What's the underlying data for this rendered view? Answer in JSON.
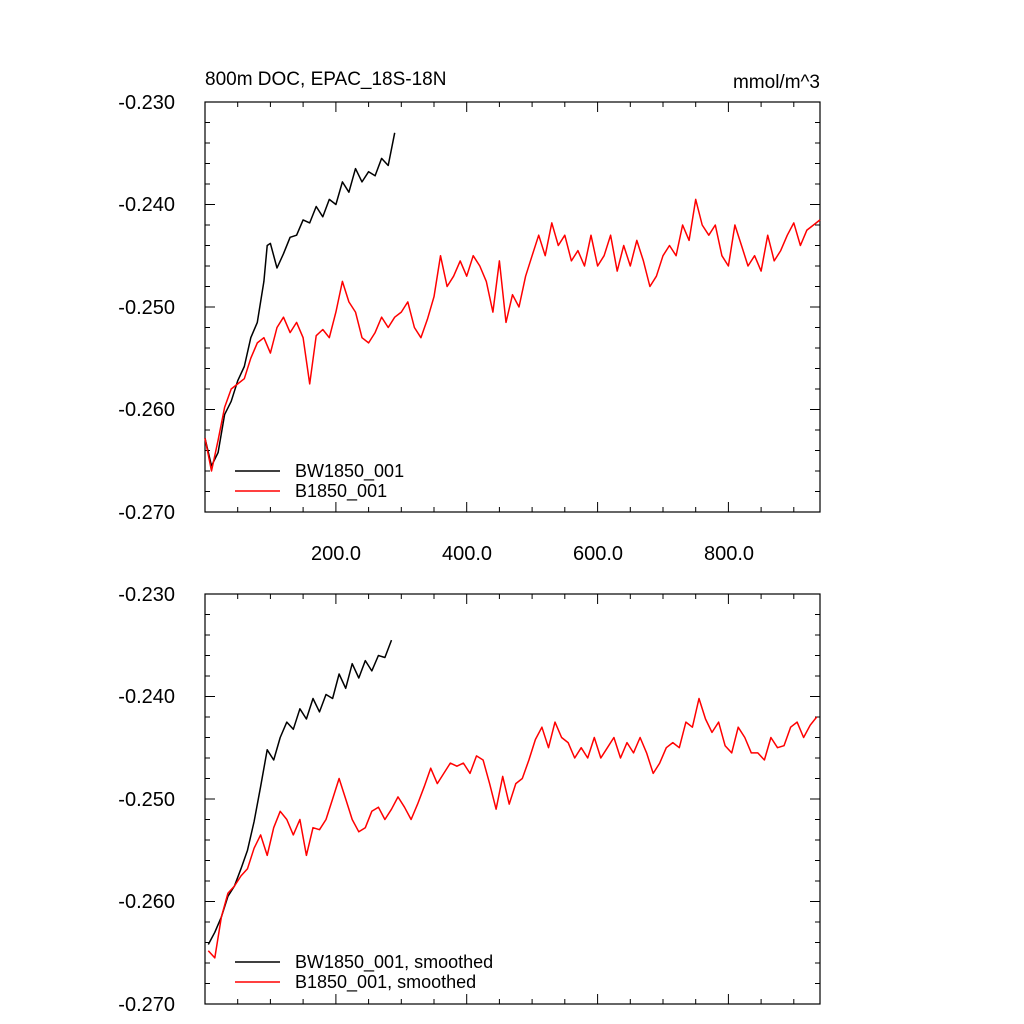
{
  "chart_data": [
    {
      "type": "line",
      "title": "800m DOC, EPAC_18S-18N",
      "units": "mmol/m^3",
      "xlim": [
        0,
        940
      ],
      "ylim": [
        -0.27,
        -0.23
      ],
      "yticks": [
        "-0.230",
        "-0.240",
        "-0.250",
        "-0.260",
        "-0.270"
      ],
      "xticks": [
        "200.0",
        "400.0",
        "600.0",
        "800.0"
      ],
      "legend_position": "bottom-left",
      "series": [
        {
          "name": "BW1850_001",
          "color": "#000000",
          "x": [
            0,
            10,
            20,
            30,
            40,
            50,
            60,
            70,
            80,
            90,
            95,
            100,
            110,
            120,
            130,
            140,
            150,
            160,
            170,
            180,
            190,
            200,
            210,
            220,
            230,
            240,
            250,
            260,
            270,
            280,
            290
          ],
          "y": [
            -0.2628,
            -0.2655,
            -0.2642,
            -0.2605,
            -0.2592,
            -0.2572,
            -0.2558,
            -0.253,
            -0.2515,
            -0.2475,
            -0.244,
            -0.2438,
            -0.2462,
            -0.2448,
            -0.2432,
            -0.243,
            -0.2415,
            -0.2418,
            -0.2402,
            -0.2412,
            -0.2395,
            -0.24,
            -0.2378,
            -0.2388,
            -0.2365,
            -0.2378,
            -0.2368,
            -0.2372,
            -0.2355,
            -0.2362,
            -0.233
          ]
        },
        {
          "name": "B1850_001",
          "color": "#ff0000",
          "x": [
            0,
            10,
            20,
            30,
            40,
            50,
            60,
            70,
            80,
            90,
            100,
            110,
            120,
            130,
            140,
            150,
            160,
            170,
            180,
            190,
            200,
            210,
            220,
            230,
            240,
            250,
            260,
            270,
            280,
            290,
            300,
            310,
            320,
            330,
            340,
            350,
            360,
            370,
            380,
            390,
            400,
            410,
            420,
            430,
            440,
            450,
            460,
            470,
            480,
            490,
            500,
            510,
            520,
            530,
            540,
            550,
            560,
            570,
            580,
            590,
            600,
            610,
            620,
            630,
            640,
            650,
            660,
            670,
            680,
            690,
            700,
            710,
            720,
            730,
            740,
            750,
            760,
            770,
            780,
            790,
            800,
            810,
            820,
            830,
            840,
            850,
            860,
            870,
            880,
            890,
            900,
            910,
            920,
            930,
            940
          ],
          "y": [
            -0.2628,
            -0.266,
            -0.263,
            -0.2598,
            -0.258,
            -0.2575,
            -0.257,
            -0.255,
            -0.2535,
            -0.253,
            -0.2545,
            -0.252,
            -0.251,
            -0.2525,
            -0.2515,
            -0.253,
            -0.2575,
            -0.2528,
            -0.2522,
            -0.253,
            -0.2505,
            -0.2475,
            -0.2495,
            -0.2505,
            -0.253,
            -0.2535,
            -0.2525,
            -0.251,
            -0.252,
            -0.251,
            -0.2505,
            -0.2495,
            -0.252,
            -0.253,
            -0.2512,
            -0.249,
            -0.245,
            -0.248,
            -0.247,
            -0.2455,
            -0.247,
            -0.245,
            -0.246,
            -0.2475,
            -0.2505,
            -0.2455,
            -0.2515,
            -0.2488,
            -0.25,
            -0.247,
            -0.245,
            -0.243,
            -0.245,
            -0.2418,
            -0.244,
            -0.243,
            -0.2455,
            -0.2445,
            -0.246,
            -0.243,
            -0.246,
            -0.245,
            -0.243,
            -0.2465,
            -0.244,
            -0.246,
            -0.2435,
            -0.2455,
            -0.248,
            -0.247,
            -0.245,
            -0.244,
            -0.245,
            -0.242,
            -0.2435,
            -0.2395,
            -0.242,
            -0.243,
            -0.242,
            -0.245,
            -0.246,
            -0.242,
            -0.244,
            -0.246,
            -0.245,
            -0.2465,
            -0.243,
            -0.2455,
            -0.2445,
            -0.243,
            -0.2418,
            -0.244,
            -0.2425,
            -0.242,
            -0.2415
          ]
        }
      ]
    },
    {
      "type": "line",
      "xlim": [
        0,
        940
      ],
      "ylim": [
        -0.27,
        -0.23
      ],
      "yticks": [
        "-0.230",
        "-0.240",
        "-0.250",
        "-0.260",
        "-0.270"
      ],
      "legend_position": "bottom-left",
      "series": [
        {
          "name": "BW1850_001, smoothed",
          "color": "#000000",
          "x": [
            5,
            15,
            25,
            35,
            45,
            55,
            65,
            75,
            85,
            95,
            105,
            115,
            125,
            135,
            145,
            155,
            165,
            175,
            185,
            195,
            205,
            215,
            225,
            235,
            245,
            255,
            265,
            275,
            285
          ],
          "y": [
            -0.2642,
            -0.263,
            -0.2615,
            -0.2595,
            -0.2585,
            -0.2568,
            -0.255,
            -0.2522,
            -0.2488,
            -0.2452,
            -0.2462,
            -0.244,
            -0.2425,
            -0.2432,
            -0.2412,
            -0.2422,
            -0.2402,
            -0.2415,
            -0.2398,
            -0.2402,
            -0.2378,
            -0.2392,
            -0.2368,
            -0.2382,
            -0.2365,
            -0.2375,
            -0.236,
            -0.2362,
            -0.2345
          ]
        },
        {
          "name": "B1850_001, smoothed",
          "color": "#ff0000",
          "x": [
            5,
            15,
            25,
            35,
            45,
            55,
            65,
            75,
            85,
            95,
            105,
            115,
            125,
            135,
            145,
            155,
            165,
            175,
            185,
            195,
            205,
            215,
            225,
            235,
            245,
            255,
            265,
            275,
            285,
            295,
            305,
            315,
            325,
            335,
            345,
            355,
            365,
            375,
            385,
            395,
            405,
            415,
            425,
            435,
            445,
            455,
            465,
            475,
            485,
            495,
            505,
            515,
            525,
            535,
            545,
            555,
            565,
            575,
            585,
            595,
            605,
            615,
            625,
            635,
            645,
            655,
            665,
            675,
            685,
            695,
            705,
            715,
            725,
            735,
            745,
            755,
            765,
            775,
            785,
            795,
            805,
            815,
            825,
            835,
            845,
            855,
            865,
            875,
            885,
            895,
            905,
            915,
            925,
            935
          ],
          "y": [
            -0.2648,
            -0.2655,
            -0.2615,
            -0.2592,
            -0.2585,
            -0.2575,
            -0.2568,
            -0.2548,
            -0.2535,
            -0.2555,
            -0.2528,
            -0.2512,
            -0.252,
            -0.2535,
            -0.252,
            -0.2555,
            -0.2528,
            -0.253,
            -0.252,
            -0.25,
            -0.248,
            -0.25,
            -0.252,
            -0.2532,
            -0.2528,
            -0.2512,
            -0.2508,
            -0.252,
            -0.251,
            -0.2498,
            -0.2508,
            -0.252,
            -0.2505,
            -0.2488,
            -0.247,
            -0.2485,
            -0.2475,
            -0.2465,
            -0.2468,
            -0.2465,
            -0.2475,
            -0.2458,
            -0.2462,
            -0.2485,
            -0.251,
            -0.2478,
            -0.2505,
            -0.2485,
            -0.248,
            -0.2462,
            -0.2442,
            -0.243,
            -0.245,
            -0.2425,
            -0.244,
            -0.2445,
            -0.246,
            -0.245,
            -0.246,
            -0.244,
            -0.246,
            -0.245,
            -0.244,
            -0.246,
            -0.2445,
            -0.2455,
            -0.244,
            -0.2455,
            -0.2475,
            -0.2465,
            -0.245,
            -0.2445,
            -0.245,
            -0.2425,
            -0.243,
            -0.2402,
            -0.2422,
            -0.2435,
            -0.2425,
            -0.2448,
            -0.2455,
            -0.243,
            -0.244,
            -0.2455,
            -0.2455,
            -0.2462,
            -0.244,
            -0.245,
            -0.2448,
            -0.243,
            -0.2425,
            -0.244,
            -0.2428,
            -0.242
          ]
        }
      ]
    }
  ]
}
